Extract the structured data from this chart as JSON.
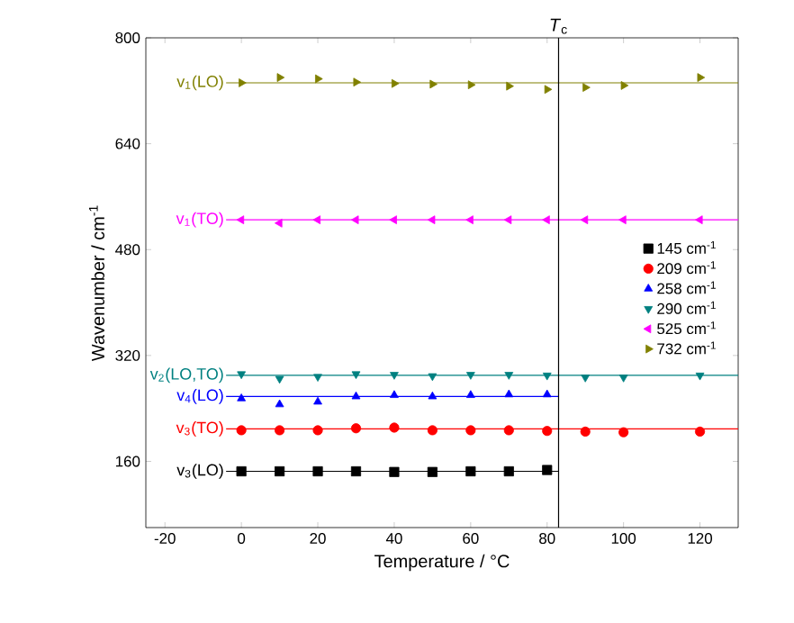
{
  "chart_data": {
    "type": "scatter",
    "xlabel": "Temperature / °C",
    "ylabel": "Wavenumber / cm$^{-1}$",
    "xlim": [
      -25,
      130
    ],
    "ylim": [
      60,
      800
    ],
    "xticks": [
      -20,
      0,
      20,
      40,
      60,
      80,
      100,
      120
    ],
    "yticks": [
      160,
      320,
      480,
      640,
      800
    ],
    "grid": false,
    "legend": "right",
    "ref_lines": [
      {
        "axis": "x",
        "value": 83,
        "label": "*T*$_{c}$",
        "color": "#000000"
      }
    ],
    "series": [
      {
        "name": "145 cm$^{-1}$",
        "type": "scatter",
        "marker": "square",
        "color": "#000000",
        "x": [
          0,
          10,
          20,
          30,
          40,
          50,
          60,
          70,
          80
        ],
        "values": [
          145,
          145,
          145,
          145,
          144,
          144,
          145,
          145,
          147
        ]
      },
      {
        "name": "209 cm$^{-1}$",
        "type": "scatter",
        "marker": "circle",
        "color": "#ff0000",
        "x": [
          0,
          10,
          20,
          30,
          40,
          50,
          60,
          70,
          80,
          90,
          100,
          120
        ],
        "values": [
          207,
          207,
          207,
          210,
          211,
          207,
          207,
          207,
          206,
          205,
          204,
          205
        ]
      },
      {
        "name": "258 cm$^{-1}$",
        "type": "scatter",
        "marker": "triangle",
        "color": "#0000ff",
        "x": [
          0,
          10,
          20,
          30,
          40,
          50,
          60,
          70,
          80
        ],
        "values": [
          255,
          246,
          250,
          258,
          260,
          258,
          260,
          261,
          261
        ]
      },
      {
        "name": "290 cm$^{-1}$",
        "type": "scatter",
        "marker": "triangle-down",
        "color": "#008080",
        "x": [
          0,
          10,
          20,
          30,
          40,
          50,
          60,
          70,
          80,
          90,
          100,
          120
        ],
        "values": [
          292,
          285,
          288,
          292,
          291,
          289,
          291,
          291,
          290,
          287,
          287,
          290
        ]
      },
      {
        "name": "525 cm$^{-1}$",
        "type": "scatter",
        "marker": "triangle-left",
        "color": "#ff00ff",
        "x": [
          0,
          10,
          20,
          30,
          40,
          50,
          60,
          70,
          80,
          90,
          100,
          120
        ],
        "values": [
          525,
          520,
          525,
          525,
          525,
          525,
          525,
          525,
          525,
          525,
          525,
          525
        ]
      },
      {
        "name": "732 cm$^{-1}$",
        "type": "scatter",
        "marker": "triangle-right",
        "color": "#808000",
        "x": [
          0,
          10,
          20,
          30,
          40,
          50,
          60,
          70,
          80,
          90,
          100,
          120
        ],
        "values": [
          732,
          740,
          738,
          733,
          731,
          730,
          729,
          727,
          722,
          725,
          728,
          740
        ]
      },
      {
        "name": "v$_{3}$(LO)",
        "type": "line",
        "color": "#000000",
        "x": [
          -4,
          83
        ],
        "values": [
          145,
          145
        ]
      },
      {
        "name": "v$_{3}$(TO)",
        "type": "line",
        "color": "#ff0000",
        "x": [
          -4,
          130
        ],
        "values": [
          209,
          209
        ]
      },
      {
        "name": "v$_{4}$(LO)",
        "type": "line",
        "color": "#0000ff",
        "x": [
          -4,
          83
        ],
        "values": [
          258,
          258
        ]
      },
      {
        "name": "v$_{2}$(LO,TO)",
        "type": "line",
        "color": "#008080",
        "x": [
          -4,
          130
        ],
        "values": [
          290,
          290
        ]
      },
      {
        "name": "v$_{1}$(TO)",
        "type": "line",
        "color": "#ff00ff",
        "x": [
          -4,
          130
        ],
        "values": [
          525,
          525
        ]
      },
      {
        "name": "v$_{1}$(LO)",
        "type": "line",
        "color": "#808000",
        "x": [
          -4,
          130
        ],
        "values": [
          732,
          732
        ]
      }
    ]
  }
}
